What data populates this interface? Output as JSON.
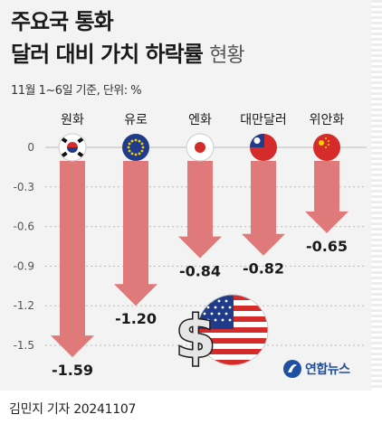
{
  "title": {
    "line1": "주요국 통화",
    "line2_bold": "달러 대비 가치 하락률",
    "line2_light": "현황"
  },
  "subtitle": "11월 1~6일 기준, 단위: %",
  "footer": "김민지 기자  20241107",
  "source_logo": "연합뉴스",
  "colors": {
    "bar": "#e07979",
    "bar_dark": "#d86a6a",
    "background": "#f3f3f3",
    "grid": "#bbbbbb",
    "text": "#1a1a1a"
  },
  "chart_data": {
    "type": "bar",
    "orientation": "vertical-downward-arrows",
    "categories": [
      "원화",
      "유로",
      "엔화",
      "대만달러",
      "위안화"
    ],
    "values": [
      -1.59,
      -1.2,
      -0.84,
      -0.82,
      -0.65
    ],
    "value_labels": [
      "-1.59",
      "-1.20",
      "-0.84",
      "-0.82",
      "-0.65"
    ],
    "flags": [
      "korea-flag-icon",
      "eu-flag-icon",
      "japan-flag-icon",
      "taiwan-flag-icon",
      "china-flag-icon"
    ],
    "yticks": [
      0,
      -0.3,
      -0.6,
      -0.9,
      -1.2,
      -1.5
    ],
    "ytick_labels": [
      "0",
      "-0.3",
      "-0.6",
      "-0.9",
      "-1.2",
      "-1.5"
    ],
    "ylim": [
      -1.59,
      0
    ],
    "grid": "dotted-horizontal",
    "xlabel": "",
    "ylabel": ""
  }
}
